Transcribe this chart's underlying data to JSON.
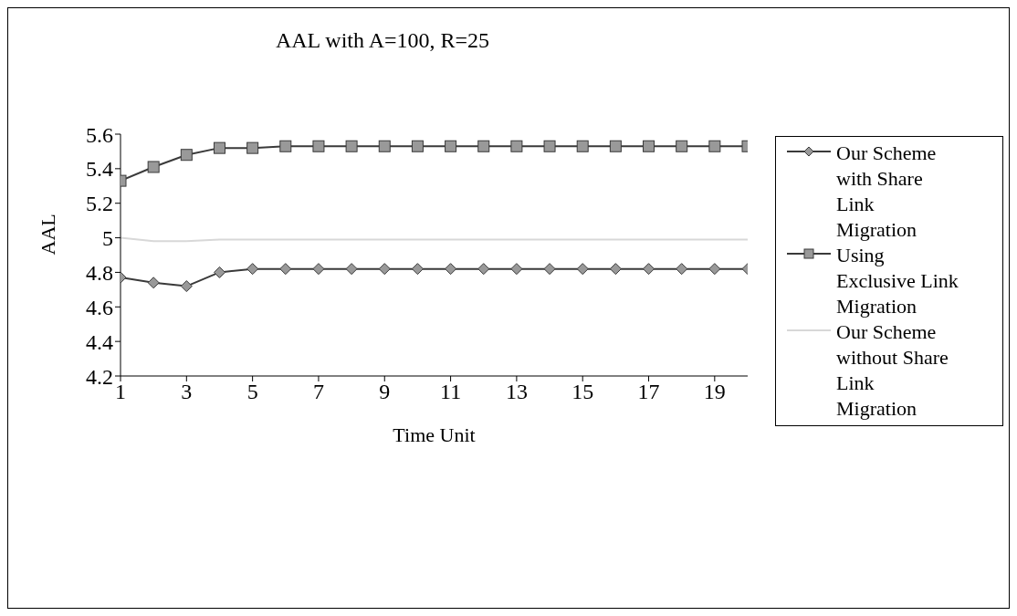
{
  "chart_data": {
    "type": "line",
    "title": "AAL with A=100, R=25",
    "xlabel": "Time Unit",
    "ylabel": "AAL",
    "x": [
      1,
      2,
      3,
      4,
      5,
      6,
      7,
      8,
      9,
      10,
      11,
      12,
      13,
      14,
      15,
      16,
      17,
      18,
      19,
      20
    ],
    "xlim": [
      1,
      20
    ],
    "xticks": [
      1,
      3,
      5,
      7,
      9,
      11,
      13,
      15,
      17,
      19
    ],
    "series": [
      {
        "name": "Our Scheme with Share Link Migration",
        "color": "#3a3a3a",
        "marker": "diamond",
        "values": [
          4.77,
          4.74,
          4.72,
          4.8,
          4.82,
          4.82,
          4.82,
          4.82,
          4.82,
          4.82,
          4.82,
          4.82,
          4.82,
          4.82,
          4.82,
          4.82,
          4.82,
          4.82,
          4.82,
          4.82
        ]
      },
      {
        "name": "Using Exclusive Link Migration",
        "color": "#3a3a3a",
        "marker": "square",
        "values": [
          5.33,
          5.41,
          5.48,
          5.52,
          5.52,
          5.53,
          5.53,
          5.53,
          5.53,
          5.53,
          5.53,
          5.53,
          5.53,
          5.53,
          5.53,
          5.53,
          5.53,
          5.53,
          5.53,
          5.53
        ]
      },
      {
        "name": "Our Scheme without Share Link Migration",
        "color": "#d8d8d8",
        "marker": "none",
        "values": [
          5.0,
          4.98,
          4.98,
          4.99,
          4.99,
          4.99,
          4.99,
          4.99,
          4.99,
          4.99,
          4.99,
          4.99,
          4.99,
          4.99,
          4.99,
          4.99,
          4.99,
          4.99,
          4.99,
          4.99
        ]
      }
    ],
    "ylim": [
      4.2,
      5.6
    ],
    "yticks": [
      4.2,
      4.4,
      4.6,
      4.8,
      5,
      5.2,
      5.4,
      5.6
    ],
    "grid": false,
    "legend": "right",
    "line_style": "solid"
  }
}
